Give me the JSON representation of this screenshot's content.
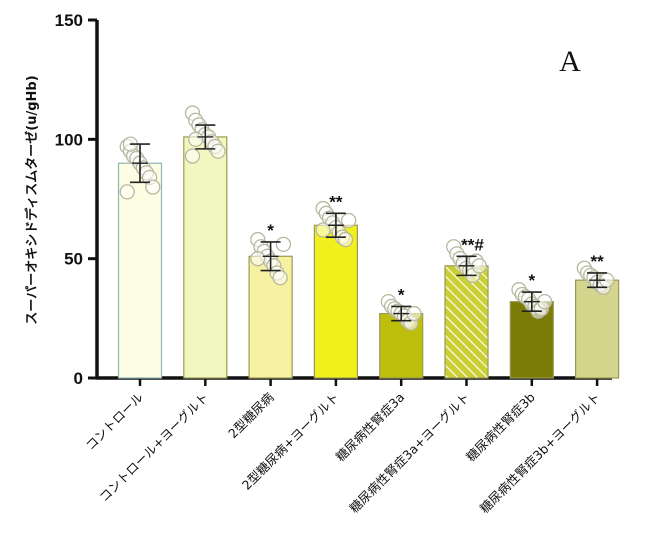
{
  "chart_data": {
    "type": "bar",
    "title": "",
    "panel_label": "A",
    "ylabel": "スーパーオキシドディスムターゼ(u/gHb)",
    "xlabel": "",
    "ylim": [
      0,
      150
    ],
    "yticks": [
      0,
      50,
      100,
      150
    ],
    "categories": [
      "コントロール",
      "コントロール+ヨーグルト",
      "2型糖尿病",
      "2型糖尿病+ヨーグルト",
      "糖尿病性腎症3a",
      "糖尿病性腎症3a+ヨーグルト",
      "糖尿病性腎症3b",
      "糖尿病性腎症3b+ヨーグルト"
    ],
    "values": [
      90,
      101,
      51,
      64,
      27,
      47,
      32,
      41
    ],
    "errors": [
      8,
      5,
      6,
      5,
      3,
      4,
      4,
      3
    ],
    "significance": [
      "",
      "",
      "*",
      "**",
      "*",
      "**#",
      "*",
      "**"
    ],
    "colors": [
      "#fdfde3",
      "#f1f7bf",
      "#f6f2a2",
      "#f2f01c",
      "#bebf0c",
      "#cbcf36",
      "#7b7b08",
      "#d5d68e"
    ],
    "hatched": [
      false,
      false,
      false,
      false,
      false,
      true,
      false,
      false
    ],
    "points": [
      [
        97,
        95,
        93,
        92,
        90,
        88,
        86,
        84,
        80,
        78,
        98
      ],
      [
        111,
        108,
        106,
        104,
        102,
        101,
        99,
        97,
        95,
        93,
        100
      ],
      [
        58,
        55,
        53,
        51,
        49,
        47,
        44,
        42,
        56,
        50
      ],
      [
        71,
        69,
        67,
        65,
        63,
        61,
        59,
        58,
        66,
        62
      ],
      [
        32,
        30,
        29,
        28,
        27,
        26,
        24,
        23,
        27
      ],
      [
        55,
        52,
        50,
        48,
        46,
        45,
        43,
        49,
        47
      ],
      [
        37,
        35,
        34,
        33,
        31,
        30,
        28,
        29,
        32
      ],
      [
        46,
        44,
        43,
        42,
        40,
        39,
        38,
        41
      ]
    ]
  }
}
